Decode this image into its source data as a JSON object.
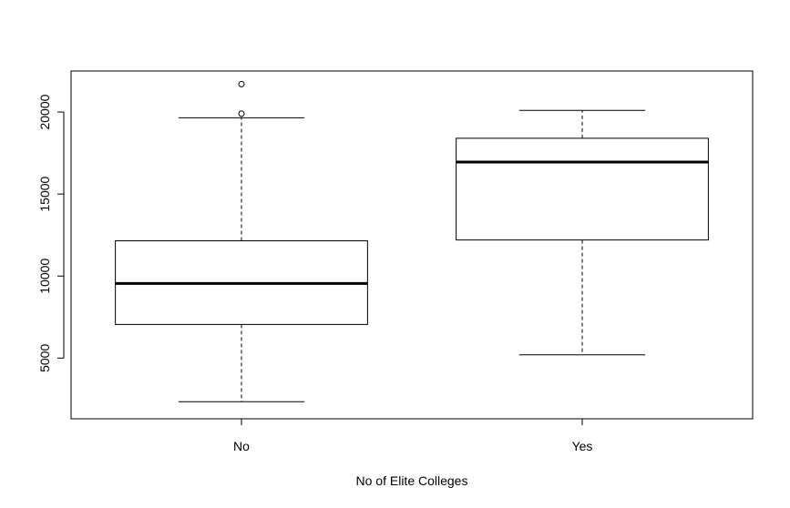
{
  "chart_data": {
    "type": "boxplot",
    "title": "",
    "xlabel": "No of Elite Colleges",
    "ylabel": "",
    "ylim": [
      1300,
      22500
    ],
    "yticks": [
      5000,
      10000,
      15000,
      20000
    ],
    "grid": false,
    "legend": "none",
    "categories": [
      "No",
      "Yes"
    ],
    "boxes": [
      {
        "category": "No",
        "whisker_low": 2340,
        "q1": 7050,
        "median": 9550,
        "q3": 12150,
        "whisker_high": 19650,
        "outliers": [
          19900,
          21700
        ]
      },
      {
        "category": "Yes",
        "whisker_low": 5200,
        "q1": 12200,
        "median": 16950,
        "q3": 18400,
        "whisker_high": 20100,
        "outliers": []
      }
    ]
  }
}
